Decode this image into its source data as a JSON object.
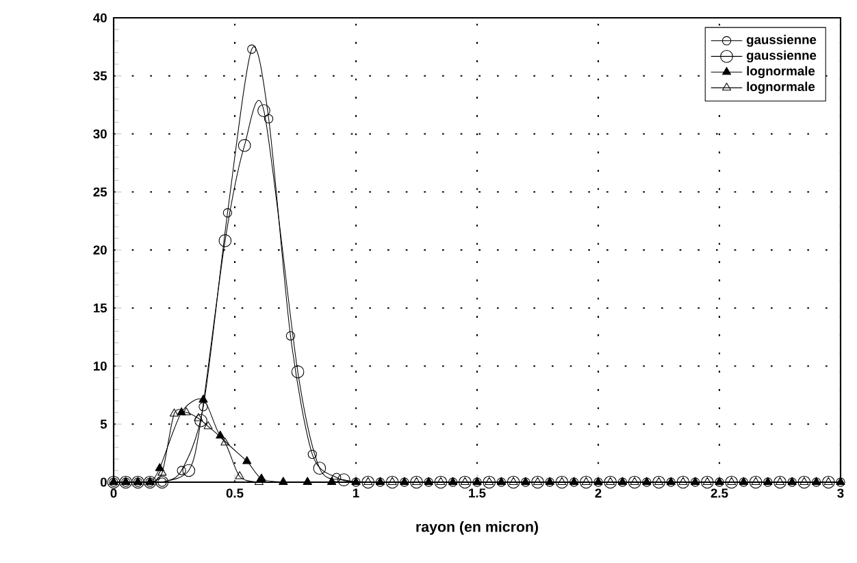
{
  "chart_data": {
    "type": "line",
    "xlabel": "rayon (en micron)",
    "xlim": [
      0,
      3
    ],
    "ylim": [
      0,
      40
    ],
    "xticks": [
      0,
      0.5,
      1,
      1.5,
      2,
      2.5,
      3
    ],
    "yticks": [
      0,
      5,
      10,
      15,
      20,
      25,
      30,
      35,
      40
    ],
    "grid": true,
    "legend": "top right",
    "line_style": "solid",
    "series": [
      {
        "name": "gaussienne",
        "color": "#000000",
        "marker": "circle",
        "x": [
          0,
          0.05,
          0.1,
          0.15,
          0.2,
          0.28,
          0.37,
          0.47,
          0.57,
          0.64,
          0.73,
          0.82,
          0.92,
          1.0,
          1.1,
          1.2,
          1.3,
          1.4,
          1.5,
          1.6,
          1.7,
          1.8,
          1.9,
          2.0,
          2.1,
          2.2,
          2.3,
          2.4,
          2.5,
          2.6,
          2.7,
          2.8,
          2.9,
          3.0
        ],
        "values": [
          0,
          0,
          0,
          0,
          0,
          1.0,
          6.5,
          23.2,
          37.3,
          31.3,
          12.6,
          2.4,
          0.4,
          0,
          0,
          0,
          0,
          0,
          0,
          0,
          0,
          0,
          0,
          0,
          0,
          0,
          0,
          0,
          0,
          0,
          0,
          0,
          0,
          0
        ]
      },
      {
        "name": "gaussienne",
        "color": "#000000",
        "marker": "circle",
        "x": [
          0,
          0.05,
          0.1,
          0.15,
          0.2,
          0.31,
          0.36,
          0.46,
          0.54,
          0.62,
          0.76,
          0.85,
          0.95,
          1.05,
          1.15,
          1.25,
          1.35,
          1.45,
          1.55,
          1.65,
          1.75,
          1.85,
          1.95,
          2.05,
          2.15,
          2.25,
          2.35,
          2.45,
          2.55,
          2.65,
          2.75,
          2.85,
          2.95
        ],
        "values": [
          0,
          0,
          0,
          0,
          0,
          1.0,
          5.3,
          20.8,
          29.0,
          32.0,
          9.5,
          1.2,
          0.2,
          0,
          0,
          0,
          0,
          0,
          0,
          0,
          0,
          0,
          0,
          0,
          0,
          0,
          0,
          0,
          0,
          0,
          0,
          0,
          0
        ]
      },
      {
        "name": "lognormale",
        "color": "#000000",
        "marker": "triangle",
        "x": [
          0,
          0.05,
          0.1,
          0.15,
          0.19,
          0.28,
          0.37,
          0.44,
          0.55,
          0.61,
          0.7,
          0.8,
          0.9,
          1.0,
          1.1,
          1.2,
          1.3,
          1.4,
          1.5,
          1.6,
          1.7,
          1.8,
          1.9,
          2.0,
          2.1,
          2.2,
          2.3,
          2.4,
          2.5,
          2.6,
          2.7,
          2.8,
          2.9,
          3.0
        ],
        "values": [
          0,
          0,
          0,
          0,
          1.2,
          6.0,
          7.1,
          4.0,
          1.8,
          0.3,
          0,
          0,
          0,
          0,
          0,
          0,
          0,
          0,
          0,
          0,
          0,
          0,
          0,
          0,
          0,
          0,
          0,
          0,
          0,
          0,
          0,
          0,
          0,
          0
        ]
      },
      {
        "name": "lognormale",
        "color": "#000000",
        "marker": "triangle",
        "x": [
          0,
          0.05,
          0.1,
          0.15,
          0.2,
          0.25,
          0.3,
          0.35,
          0.39,
          0.46,
          0.52,
          0.6,
          0.7,
          0.8,
          0.9,
          1.05,
          1.15,
          1.25,
          1.35,
          1.45,
          1.55,
          1.65,
          1.75,
          1.85,
          1.95,
          2.05,
          2.15,
          2.25,
          2.35,
          2.45,
          2.55,
          2.65,
          2.75,
          2.85,
          2.95
        ],
        "values": [
          0,
          0,
          0,
          0,
          0.8,
          5.9,
          6.0,
          5.5,
          4.8,
          3.4,
          0.5,
          0,
          0,
          0,
          0,
          0,
          0,
          0,
          0,
          0,
          0,
          0,
          0,
          0,
          0,
          0,
          0,
          0,
          0,
          0,
          0,
          0,
          0,
          0,
          0
        ]
      }
    ]
  }
}
